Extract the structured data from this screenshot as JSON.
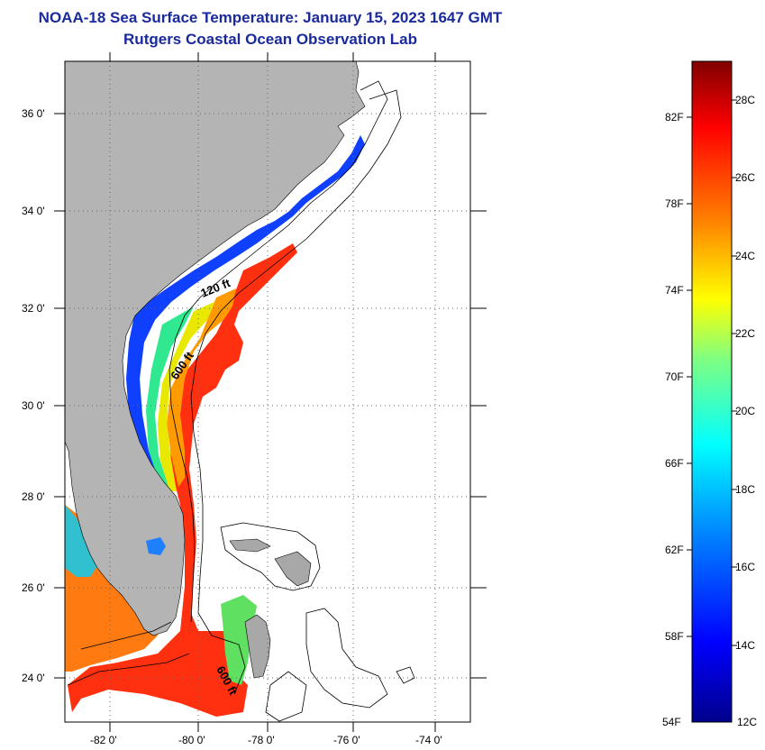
{
  "header": {
    "title": "NOAA-18 Sea Surface Temperature:  January 15, 2023 1647 GMT",
    "subtitle": "Rutgers Coastal Ocean Observation Lab"
  },
  "map": {
    "lat_labels": [
      "36 0'",
      "34 0'",
      "32 0'",
      "30 0'",
      "28 0'",
      "26 0'",
      "24 0'"
    ],
    "lon_labels": [
      "-82 0'",
      "-80 0'",
      "-78 0'",
      "-76 0'",
      "-74 0'"
    ],
    "contours": {
      "c120": "120 ft",
      "c600a": "600 ft",
      "c600b": "600 ft"
    },
    "colors": {
      "land": "#b4b4b4",
      "ocean_nodata": "#ffffff"
    }
  },
  "colorbar": {
    "fahrenheit": [
      "82F",
      "78F",
      "74F",
      "70F",
      "66F",
      "62F",
      "58F",
      "54F"
    ],
    "celsius": [
      "28C",
      "26C",
      "24C",
      "22C",
      "20C",
      "18C",
      "16C",
      "14C",
      "12C"
    ],
    "stops": [
      "#00008b",
      "#0000ff",
      "#0080ff",
      "#00ffff",
      "#80ff80",
      "#ffff00",
      "#ff8000",
      "#ff0000",
      "#800000"
    ]
  }
}
